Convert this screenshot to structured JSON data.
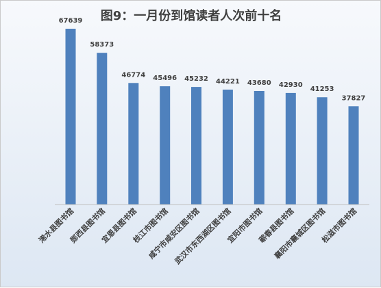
{
  "chart_data": {
    "type": "bar",
    "title": "图9：一月份到馆读者人次前十名",
    "categories": [
      "浠水县图书馆",
      "郧西县图书馆",
      "宜恩县图书馆",
      "枝江市图书馆",
      "咸宁市咸安区图书馆",
      "武汉市东西湖区图书馆",
      "宜阳市图书馆",
      "蕲春县图书馆",
      "襄阳市襄城区图书馆",
      "松滋市图书馆"
    ],
    "values": [
      67639,
      58373,
      46774,
      45496,
      45232,
      44221,
      43680,
      42930,
      41253,
      37827
    ],
    "ylim": [
      0,
      70000
    ],
    "grid": false,
    "legend": "none",
    "colors": {
      "bar": "#4f81bd",
      "axis": "#bfbfbf",
      "text": "#404040"
    }
  }
}
